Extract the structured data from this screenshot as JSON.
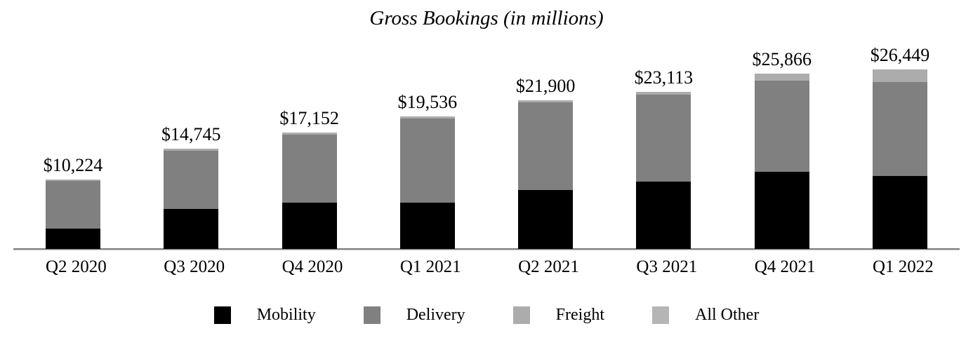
{
  "page": {
    "background": "#ffffff",
    "axis_color": "#808080"
  },
  "chart_data": {
    "type": "bar",
    "stacked": true,
    "title": "Gross Bookings (in millions)",
    "categories": [
      "Q2 2020",
      "Q3 2020",
      "Q4 2020",
      "Q1 2021",
      "Q2 2021",
      "Q3 2021",
      "Q4 2021",
      "Q1 2022"
    ],
    "series": [
      {
        "name": "Mobility",
        "color": "#000000",
        "values": [
          3046,
          5905,
          6789,
          6773,
          8640,
          9883,
          11340,
          10723
        ]
      },
      {
        "name": "Delivery",
        "color": "#808080",
        "values": [
          6961,
          8550,
          10050,
          12461,
          12912,
          12828,
          13442,
          13903
        ]
      },
      {
        "name": "Freight",
        "color": "#acacac",
        "values": [
          211,
          288,
          313,
          301,
          348,
          402,
          1084,
          1823
        ]
      },
      {
        "name": "All Other",
        "color": "#b5b5b5",
        "values": [
          6,
          2,
          0,
          1,
          0,
          0,
          0,
          0
        ]
      }
    ],
    "totals": [
      10224,
      14745,
      17152,
      19536,
      21900,
      23113,
      25866,
      26449
    ],
    "total_labels": [
      "$10,224",
      "$14,745",
      "$17,152",
      "$19,536",
      "$21,900",
      "$23,113",
      "$25,866",
      "$26,449"
    ],
    "ylim": [
      0,
      31000
    ],
    "grid": false,
    "legend_position": "bottom"
  }
}
